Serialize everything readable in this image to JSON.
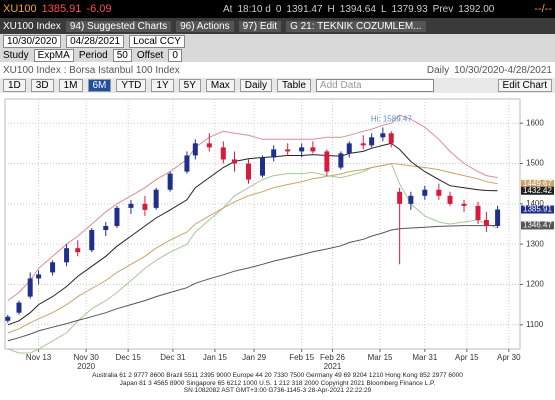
{
  "header": {
    "ticker": "XU100",
    "last": "1385.91",
    "change": "-6.09",
    "time_placeholder": "--/--",
    "at_label": "At",
    "at_time": "18:10 d",
    "open_label": "0",
    "open": "1391.47",
    "high_label": "H",
    "high": "1394.64",
    "low_label": "L",
    "low": "1379.93",
    "prev_label": "Prev",
    "prev": "1392.00"
  },
  "menu": {
    "security": "XU100 Index",
    "suggested": "94) Suggested Charts",
    "actions": "96) Actions",
    "edit": "97) Edit",
    "page": "G 21: TEKNIK COZUMLEM..."
  },
  "range": {
    "start": "10/30/2020",
    "end": "04/28/2021",
    "currency": "Local CCY"
  },
  "study": {
    "label": "Study",
    "name": "ExpMA",
    "period_label": "Period",
    "period": "50",
    "offset_label": "Offset",
    "offset": "0"
  },
  "info": {
    "title": "XU100 Index : Borsa Istanbul 100 Index",
    "freq": "Daily",
    "span": "10/30/2020-4/28/2021"
  },
  "toolbar": {
    "buttons": [
      "1D",
      "3D",
      "1M",
      "6M",
      "YTD",
      "1Y",
      "5Y",
      "Max"
    ],
    "frequency": "Daily",
    "table": "Table",
    "add_data": "Add Data",
    "edit_chart": "Edit Chart"
  },
  "footer": {
    "lines": [
      "Australia 61 2 9777 8600 Brazil 5511 2395 9000 Europe 44 20 7330 7500 Germany 49 69 9204 1210 Hong Kong 852 2977 6000",
      "Japan 81 3 4565 8900      Singapore 65 6212 1000      U.S. 1 212 318 2000      Copyright 2021 Bloomberg Finance L.P.",
      "SN 1082082 AST GMT+3:00 G736-1145-3 28-Apr-2021 22:22:29"
    ]
  },
  "chart_data": {
    "type": "candlestick",
    "up_color": "#1f2f8a",
    "down_color": "#d81b3c",
    "annotation": "Hi: 1589.47",
    "x": [
      "2020-11-02",
      "2020-11-06",
      "2020-11-10",
      "2020-11-13",
      "2020-11-18",
      "2020-11-23",
      "2020-11-27",
      "2020-12-02",
      "2020-12-07",
      "2020-12-11",
      "2020-12-16",
      "2020-12-21",
      "2020-12-25",
      "2020-12-30",
      "2021-01-05",
      "2021-01-08",
      "2021-01-13",
      "2021-01-18",
      "2021-01-22",
      "2021-01-27",
      "2021-02-01",
      "2021-02-05",
      "2021-02-10",
      "2021-02-15",
      "2021-02-19",
      "2021-02-24",
      "2021-03-01",
      "2021-03-04",
      "2021-03-09",
      "2021-03-12",
      "2021-03-16",
      "2021-03-19",
      "2021-03-22",
      "2021-03-26",
      "2021-03-31",
      "2021-04-05",
      "2021-04-09",
      "2021-04-14",
      "2021-04-19",
      "2021-04-22",
      "2021-04-26"
    ],
    "open": [
      1110,
      1130,
      1170,
      1215,
      1230,
      1255,
      1290,
      1285,
      1335,
      1345,
      1390,
      1400,
      1390,
      1435,
      1480,
      1520,
      1550,
      1540,
      1510,
      1500,
      1470,
      1515,
      1535,
      1530,
      1540,
      1530,
      1490,
      1525,
      1550,
      1545,
      1565,
      1575,
      1430,
      1400,
      1420,
      1435,
      1420,
      1400,
      1395,
      1360,
      1345
    ],
    "high": [
      1125,
      1160,
      1230,
      1235,
      1260,
      1300,
      1310,
      1340,
      1355,
      1395,
      1410,
      1420,
      1440,
      1480,
      1530,
      1560,
      1575,
      1555,
      1530,
      1510,
      1520,
      1545,
      1550,
      1550,
      1555,
      1535,
      1530,
      1555,
      1570,
      1575,
      1589.47,
      1580,
      1440,
      1430,
      1445,
      1450,
      1430,
      1410,
      1405,
      1380,
      1395
    ],
    "low": [
      1105,
      1125,
      1165,
      1200,
      1222,
      1245,
      1270,
      1280,
      1320,
      1340,
      1375,
      1370,
      1385,
      1430,
      1475,
      1510,
      1530,
      1500,
      1480,
      1450,
      1465,
      1505,
      1520,
      1515,
      1525,
      1470,
      1485,
      1515,
      1535,
      1540,
      1555,
      1540,
      1250,
      1385,
      1410,
      1410,
      1395,
      1380,
      1350,
      1330,
      1340
    ],
    "close": [
      1120,
      1155,
      1215,
      1225,
      1255,
      1290,
      1280,
      1335,
      1345,
      1390,
      1400,
      1385,
      1435,
      1475,
      1520,
      1550,
      1540,
      1510,
      1500,
      1460,
      1515,
      1535,
      1530,
      1540,
      1530,
      1480,
      1525,
      1550,
      1545,
      1565,
      1575,
      1550,
      1400,
      1420,
      1435,
      1420,
      1400,
      1395,
      1360,
      1345,
      1385.91
    ],
    "series": [
      {
        "color": "#d98c9a",
        "tag": false,
        "values": [
          1160,
          1180,
          1210,
          1240,
          1270,
          1300,
          1320,
          1350,
          1380,
          1400,
          1420,
          1440,
          1460,
          1480,
          1510,
          1540,
          1565,
          1580,
          1575,
          1570,
          1560,
          1560,
          1560,
          1560,
          1560,
          1565,
          1565,
          1570,
          1580,
          1585,
          1595,
          1600,
          1620,
          1610,
          1590,
          1560,
          1530,
          1500,
          1480,
          1470,
          1465
        ]
      },
      {
        "color": "#a8c89a",
        "tag": false,
        "values": [
          1040,
          1030,
          1030,
          1040,
          1060,
          1080,
          1110,
          1140,
          1160,
          1180,
          1210,
          1240,
          1260,
          1280,
          1300,
          1330,
          1360,
          1390,
          1420,
          1440,
          1460,
          1470,
          1475,
          1475,
          1478,
          1470,
          1465,
          1470,
          1480,
          1490,
          1495,
          1500,
          1450,
          1400,
          1370,
          1355,
          1350,
          1355,
          1360,
          1350,
          1340
        ]
      },
      {
        "color": "#c9a36b",
        "tag": true,
        "values": [
          1080,
          1090,
          1105,
          1115,
          1130,
          1150,
          1170,
          1190,
          1210,
          1230,
          1250,
          1270,
          1290,
          1310,
          1330,
          1350,
          1370,
          1390,
          1405,
          1420,
          1430,
          1440,
          1448,
          1455,
          1462,
          1468,
          1474,
          1480,
          1485,
          1490,
          1495,
          1500,
          1498,
          1494,
          1490,
          1485,
          1478,
          1470,
          1462,
          1455,
          1449.67
        ]
      },
      {
        "color": "#222222",
        "tag": true,
        "values": [
          1100,
          1110,
          1130,
          1150,
          1170,
          1195,
          1220,
          1245,
          1270,
          1295,
          1320,
          1345,
          1365,
          1385,
          1410,
          1440,
          1465,
          1490,
          1505,
          1512,
          1515,
          1517,
          1520,
          1520,
          1522,
          1520,
          1518,
          1525,
          1530,
          1538,
          1545,
          1550,
          1535,
          1505,
          1480,
          1460,
          1445,
          1440,
          1435,
          1433,
          1432.42
        ]
      },
      {
        "color": "#555555",
        "tag": true,
        "values": [
          1060,
          1068,
          1077,
          1085,
          1094,
          1103,
          1111,
          1120,
          1130,
          1140,
          1150,
          1160,
          1170,
          1180,
          1192,
          1203,
          1214,
          1224,
          1233,
          1241,
          1250,
          1258,
          1266,
          1274,
          1281,
          1288,
          1296,
          1304,
          1312,
          1320,
          1328,
          1335,
          1338,
          1340,
          1342,
          1344,
          1345,
          1346,
          1346,
          1346,
          1346.47
        ]
      }
    ],
    "xlim": [
      "2020-11-01",
      "2021-05-04"
    ],
    "xticks": [
      {
        "value": "2020-11-13",
        "label": "Nov 13"
      },
      {
        "value": "2020-11-30",
        "label": "Nov 30"
      },
      {
        "value": "2020-12-15",
        "label": "Dec 15"
      },
      {
        "value": "2020-12-31",
        "label": "Dec 31"
      },
      {
        "value": "2021-01-15",
        "label": "Jan 15"
      },
      {
        "value": "2021-01-29",
        "label": "Jan 29"
      },
      {
        "value": "2021-02-15",
        "label": "Feb 15"
      },
      {
        "value": "2021-02-26",
        "label": "Feb 26"
      },
      {
        "value": "2021-03-15",
        "label": "Mar 15"
      },
      {
        "value": "2021-03-31",
        "label": "Mar 31"
      },
      {
        "value": "2021-04-15",
        "label": "Apr 15"
      },
      {
        "value": "2021-04-30",
        "label": "Apr 30"
      }
    ],
    "year_labels": [
      {
        "value": "2020-11-30",
        "label": "2020"
      },
      {
        "value": "2021-02-26",
        "label": "2021"
      }
    ],
    "ylim": [
      1040,
      1660
    ],
    "yticks": [
      1100,
      1200,
      1300,
      1400,
      1500,
      1600
    ],
    "grid": true
  }
}
